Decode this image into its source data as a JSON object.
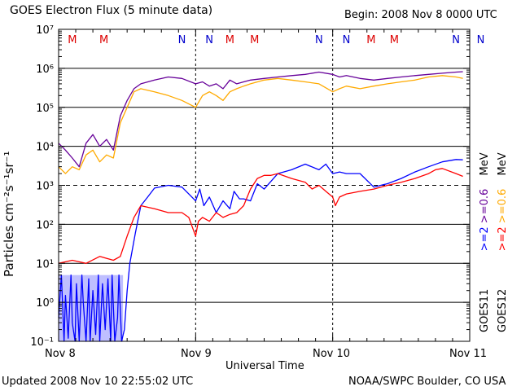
{
  "header": {
    "title": "GOES Electron Flux (5 minute data)",
    "begin": "Begin: 2008 Nov 8 0000 UTC"
  },
  "footer": {
    "updated": "Updated 2008 Nov 10 22:55:02 UTC",
    "credit": "NOAA/SWPC Boulder, CO USA"
  },
  "colors": {
    "g11_high": "#0000ff",
    "g11_low": "#660099",
    "g12_high": "#ff0000",
    "g12_low": "#ffaa00",
    "marker_M": "#dd0000",
    "marker_N": "#0000cc"
  },
  "legend": {
    "left_col": {
      "sat": "GOES11",
      "e2": ">=2",
      "e06": ">=0.6",
      "unit": "MeV"
    },
    "right_col": {
      "sat": "GOES12",
      "e2": ">=2",
      "e06": ">=0.6",
      "unit": "MeV"
    }
  },
  "chart_data": {
    "type": "line",
    "title": "GOES Electron Flux (5 minute data)",
    "xlabel": "Universal Time",
    "ylabel": "Particles cm⁻²s⁻¹sr⁻¹",
    "x_ticks": [
      "Nov 8",
      "Nov 9",
      "Nov 10",
      "Nov 11"
    ],
    "xlim_days": [
      0,
      3
    ],
    "y_scale": "log",
    "ylim": [
      0.1,
      10000000
    ],
    "y_ticks": [
      "10⁻¹",
      "10⁰",
      "10¹",
      "10²",
      "10³",
      "10⁴",
      "10⁵",
      "10⁶",
      "10⁷"
    ],
    "alert_threshold": 1000,
    "markers": [
      {
        "label": "M",
        "day": 0.1
      },
      {
        "label": "M",
        "day": 0.33
      },
      {
        "label": "N",
        "day": 0.9
      },
      {
        "label": "N",
        "day": 1.1
      },
      {
        "label": "M",
        "day": 1.25
      },
      {
        "label": "M",
        "day": 1.43
      },
      {
        "label": "N",
        "day": 1.9
      },
      {
        "label": "N",
        "day": 2.1
      },
      {
        "label": "M",
        "day": 2.28
      },
      {
        "label": "M",
        "day": 2.45
      },
      {
        "label": "N",
        "day": 2.9
      },
      {
        "label": "N",
        "day": 3.08
      }
    ],
    "series": [
      {
        "name": "GOES11 >=2 MeV",
        "color": "#0000ff",
        "x": [
          0.0,
          0.02,
          0.04,
          0.05,
          0.07,
          0.09,
          0.1,
          0.12,
          0.13,
          0.15,
          0.17,
          0.18,
          0.2,
          0.22,
          0.23,
          0.25,
          0.27,
          0.29,
          0.3,
          0.32,
          0.34,
          0.36,
          0.38,
          0.39,
          0.41,
          0.43,
          0.44,
          0.46,
          0.48,
          0.5,
          0.52,
          0.56,
          0.6,
          0.65,
          0.7,
          0.8,
          0.9,
          0.95,
          1.0,
          1.03,
          1.06,
          1.1,
          1.15,
          1.2,
          1.25,
          1.28,
          1.32,
          1.35,
          1.4,
          1.45,
          1.5,
          1.6,
          1.7,
          1.8,
          1.9,
          1.95,
          2.0,
          2.05,
          2.1,
          2.2,
          2.3,
          2.35,
          2.4,
          2.5,
          2.6,
          2.7,
          2.8,
          2.9,
          2.95
        ],
        "y": [
          0.4,
          5,
          0.1,
          1.5,
          0.12,
          5,
          0.3,
          0.1,
          3,
          0.1,
          5,
          1,
          0.1,
          4,
          0.1,
          2,
          0.15,
          5,
          0.1,
          3,
          0.2,
          4,
          0.1,
          5,
          0.1,
          0.4,
          5,
          0.1,
          0.2,
          2,
          10,
          60,
          300,
          500,
          850,
          1000,
          900,
          600,
          400,
          800,
          300,
          500,
          200,
          400,
          250,
          700,
          450,
          450,
          400,
          1100,
          800,
          2000,
          2500,
          3500,
          2500,
          3500,
          2000,
          2200,
          2000,
          2000,
          900,
          1000,
          1100,
          1500,
          2200,
          3000,
          4000,
          4600,
          4500
        ]
      },
      {
        "name": "GOES11 >=0.6 MeV",
        "color": "#660099",
        "x": [
          0.0,
          0.05,
          0.1,
          0.15,
          0.2,
          0.25,
          0.3,
          0.35,
          0.4,
          0.45,
          0.5,
          0.55,
          0.6,
          0.7,
          0.8,
          0.9,
          1.0,
          1.05,
          1.1,
          1.15,
          1.2,
          1.25,
          1.3,
          1.35,
          1.4,
          1.5,
          1.6,
          1.7,
          1.8,
          1.9,
          2.0,
          2.05,
          2.1,
          2.2,
          2.3,
          2.4,
          2.5,
          2.6,
          2.7,
          2.8,
          2.9,
          2.95
        ],
        "y": [
          12000,
          8000,
          5000,
          3000,
          12000,
          20000,
          10000,
          15000,
          8000,
          60000,
          150000,
          300000,
          400000,
          500000,
          600000,
          550000,
          400000,
          450000,
          350000,
          400000,
          300000,
          500000,
          400000,
          450000,
          500000,
          550000,
          600000,
          650000,
          700000,
          800000,
          700000,
          600000,
          650000,
          550000,
          500000,
          550000,
          600000,
          650000,
          700000,
          750000,
          800000,
          820000
        ]
      },
      {
        "name": "GOES12 >=2 MeV",
        "color": "#ff0000",
        "x": [
          0.0,
          0.1,
          0.2,
          0.3,
          0.4,
          0.45,
          0.5,
          0.55,
          0.6,
          0.7,
          0.8,
          0.9,
          0.95,
          1.0,
          1.02,
          1.05,
          1.1,
          1.15,
          1.2,
          1.25,
          1.3,
          1.35,
          1.4,
          1.45,
          1.5,
          1.55,
          1.6,
          1.7,
          1.8,
          1.85,
          1.9,
          1.95,
          2.0,
          2.02,
          2.05,
          2.1,
          2.2,
          2.3,
          2.4,
          2.5,
          2.6,
          2.7,
          2.75,
          2.8,
          2.9,
          2.95
        ],
        "y": [
          10,
          12,
          10,
          15,
          12,
          15,
          50,
          150,
          300,
          250,
          200,
          200,
          150,
          50,
          120,
          150,
          120,
          200,
          150,
          180,
          200,
          300,
          800,
          1500,
          1800,
          1800,
          2000,
          1500,
          1200,
          800,
          1000,
          700,
          500,
          300,
          500,
          600,
          700,
          800,
          1000,
          1200,
          1500,
          2000,
          2500,
          2700,
          2000,
          1700
        ]
      },
      {
        "name": "GOES12 >=0.6 MeV",
        "color": "#ffaa00",
        "x": [
          0.0,
          0.05,
          0.1,
          0.15,
          0.2,
          0.25,
          0.3,
          0.35,
          0.4,
          0.45,
          0.5,
          0.55,
          0.6,
          0.7,
          0.8,
          0.9,
          1.0,
          1.05,
          1.1,
          1.15,
          1.2,
          1.25,
          1.3,
          1.35,
          1.4,
          1.5,
          1.6,
          1.7,
          1.8,
          1.9,
          2.0,
          2.05,
          2.1,
          2.2,
          2.3,
          2.4,
          2.5,
          2.6,
          2.7,
          2.8,
          2.9,
          2.95
        ],
        "y": [
          3000,
          2000,
          3000,
          2500,
          6000,
          8000,
          4000,
          6000,
          5000,
          40000,
          100000,
          250000,
          300000,
          250000,
          200000,
          150000,
          100000,
          200000,
          250000,
          200000,
          150000,
          250000,
          300000,
          350000,
          400000,
          500000,
          550000,
          500000,
          450000,
          400000,
          250000,
          300000,
          350000,
          300000,
          350000,
          400000,
          450000,
          500000,
          600000,
          650000,
          600000,
          550000
        ]
      }
    ]
  }
}
